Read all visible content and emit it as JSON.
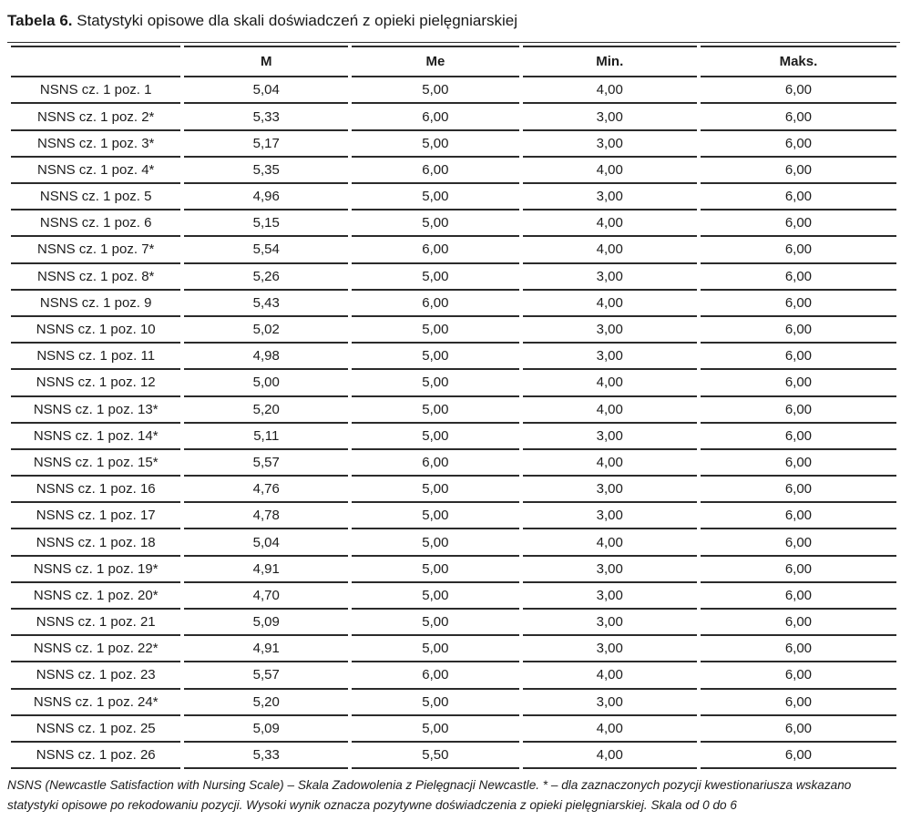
{
  "title": {
    "label": "Tabela 6.",
    "text": "Statystyki opisowe dla skali doświadczeń z opieki pielęgniarskiej"
  },
  "table": {
    "headers": [
      "",
      "M",
      "Me",
      "Min.",
      "Maks."
    ],
    "rows": [
      {
        "label": "NSNS cz. 1 poz. 1",
        "m": "5,04",
        "me": "5,00",
        "min": "4,00",
        "maks": "6,00"
      },
      {
        "label": "NSNS cz. 1 poz. 2*",
        "m": "5,33",
        "me": "6,00",
        "min": "3,00",
        "maks": "6,00"
      },
      {
        "label": "NSNS cz. 1 poz. 3*",
        "m": "5,17",
        "me": "5,00",
        "min": "3,00",
        "maks": "6,00"
      },
      {
        "label": "NSNS cz. 1 poz. 4*",
        "m": "5,35",
        "me": "6,00",
        "min": "4,00",
        "maks": "6,00"
      },
      {
        "label": "NSNS cz. 1 poz. 5",
        "m": "4,96",
        "me": "5,00",
        "min": "3,00",
        "maks": "6,00"
      },
      {
        "label": "NSNS cz. 1 poz. 6",
        "m": "5,15",
        "me": "5,00",
        "min": "4,00",
        "maks": "6,00"
      },
      {
        "label": "NSNS cz. 1 poz. 7*",
        "m": "5,54",
        "me": "6,00",
        "min": "4,00",
        "maks": "6,00"
      },
      {
        "label": "NSNS cz. 1 poz. 8*",
        "m": "5,26",
        "me": "5,00",
        "min": "3,00",
        "maks": "6,00"
      },
      {
        "label": "NSNS cz. 1 poz. 9",
        "m": "5,43",
        "me": "6,00",
        "min": "4,00",
        "maks": "6,00"
      },
      {
        "label": "NSNS cz. 1 poz. 10",
        "m": "5,02",
        "me": "5,00",
        "min": "3,00",
        "maks": "6,00"
      },
      {
        "label": "NSNS cz. 1 poz. 11",
        "m": "4,98",
        "me": "5,00",
        "min": "3,00",
        "maks": "6,00"
      },
      {
        "label": "NSNS cz. 1 poz. 12",
        "m": "5,00",
        "me": "5,00",
        "min": "4,00",
        "maks": "6,00"
      },
      {
        "label": "NSNS cz. 1 poz. 13*",
        "m": "5,20",
        "me": "5,00",
        "min": "4,00",
        "maks": "6,00"
      },
      {
        "label": "NSNS cz. 1 poz. 14*",
        "m": "5,11",
        "me": "5,00",
        "min": "3,00",
        "maks": "6,00"
      },
      {
        "label": "NSNS cz. 1 poz. 15*",
        "m": "5,57",
        "me": "6,00",
        "min": "4,00",
        "maks": "6,00"
      },
      {
        "label": "NSNS cz. 1 poz. 16",
        "m": "4,76",
        "me": "5,00",
        "min": "3,00",
        "maks": "6,00"
      },
      {
        "label": "NSNS cz. 1 poz. 17",
        "m": "4,78",
        "me": "5,00",
        "min": "3,00",
        "maks": "6,00"
      },
      {
        "label": "NSNS cz. 1 poz. 18",
        "m": "5,04",
        "me": "5,00",
        "min": "4,00",
        "maks": "6,00"
      },
      {
        "label": "NSNS cz. 1 poz. 19*",
        "m": "4,91",
        "me": "5,00",
        "min": "3,00",
        "maks": "6,00"
      },
      {
        "label": "NSNS cz. 1 poz. 20*",
        "m": "4,70",
        "me": "5,00",
        "min": "3,00",
        "maks": "6,00"
      },
      {
        "label": "NSNS cz. 1 poz. 21",
        "m": "5,09",
        "me": "5,00",
        "min": "3,00",
        "maks": "6,00"
      },
      {
        "label": "NSNS cz. 1 poz. 22*",
        "m": "4,91",
        "me": "5,00",
        "min": "3,00",
        "maks": "6,00"
      },
      {
        "label": "NSNS cz. 1 poz. 23",
        "m": "5,57",
        "me": "6,00",
        "min": "4,00",
        "maks": "6,00"
      },
      {
        "label": "NSNS cz. 1 poz. 24*",
        "m": "5,20",
        "me": "5,00",
        "min": "3,00",
        "maks": "6,00"
      },
      {
        "label": "NSNS cz. 1 poz. 25",
        "m": "5,09",
        "me": "5,00",
        "min": "4,00",
        "maks": "6,00"
      },
      {
        "label": "NSNS cz. 1 poz. 26",
        "m": "5,33",
        "me": "5,50",
        "min": "4,00",
        "maks": "6,00"
      }
    ]
  },
  "footnote": "NSNS (Newcastle Satisfaction with Nursing Scale) – Skala Zadowolenia z Pielęgnacji Newcastle. * – dla zaznaczonych pozycji kwestionariusza wskazano statystyki opisowe po rekodowaniu pozycji. Wysoki wynik oznacza pozytywne doświadczenia z opieki pielęgniarskiej. Skala od 0 do 6",
  "colors": {
    "text": "#1c1c1c",
    "rule": "#2b2b2b",
    "background": "#ffffff"
  }
}
